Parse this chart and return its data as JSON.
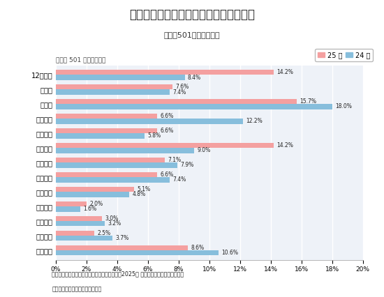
{
  "title": "企業が内定（内々定）を出し始めた時期",
  "subtitle": "従業員501名以上の企業",
  "axis_label": "従業員 501 名以上の企業",
  "categories": [
    "12月以前",
    "１月中",
    "２月中",
    "３月上旬",
    "３月中旬",
    "３月下旬",
    "４月上旬",
    "４月中旬",
    "４月下旬",
    "５月上旬",
    "５月中旬",
    "５月下旬",
    "６月以降"
  ],
  "series_25": [
    14.2,
    7.6,
    15.7,
    6.6,
    6.6,
    14.2,
    7.1,
    6.6,
    5.1,
    2.0,
    3.0,
    2.5,
    8.6
  ],
  "series_24": [
    8.4,
    7.4,
    18.0,
    12.2,
    5.8,
    9.0,
    7.9,
    7.4,
    4.8,
    1.6,
    3.2,
    3.7,
    10.6
  ],
  "color_25": "#F4A0A0",
  "color_24": "#87BEDC",
  "legend_25": "25 卒",
  "legend_24": "24 卒",
  "xlim": [
    0,
    20
  ],
  "xticks": [
    0,
    2,
    4,
    6,
    8,
    10,
    12,
    14,
    16,
    18,
    20
  ],
  "title_bg": "#d6e0ef",
  "chart_bg": "#eef2f8",
  "footer_text1": "株式会社ダイヤモンド・ヒューマンリソース『2025卒 採用・就職活動の総括』より",
  "footer_text2": "＊調査概要は記事最終ページ参照"
}
